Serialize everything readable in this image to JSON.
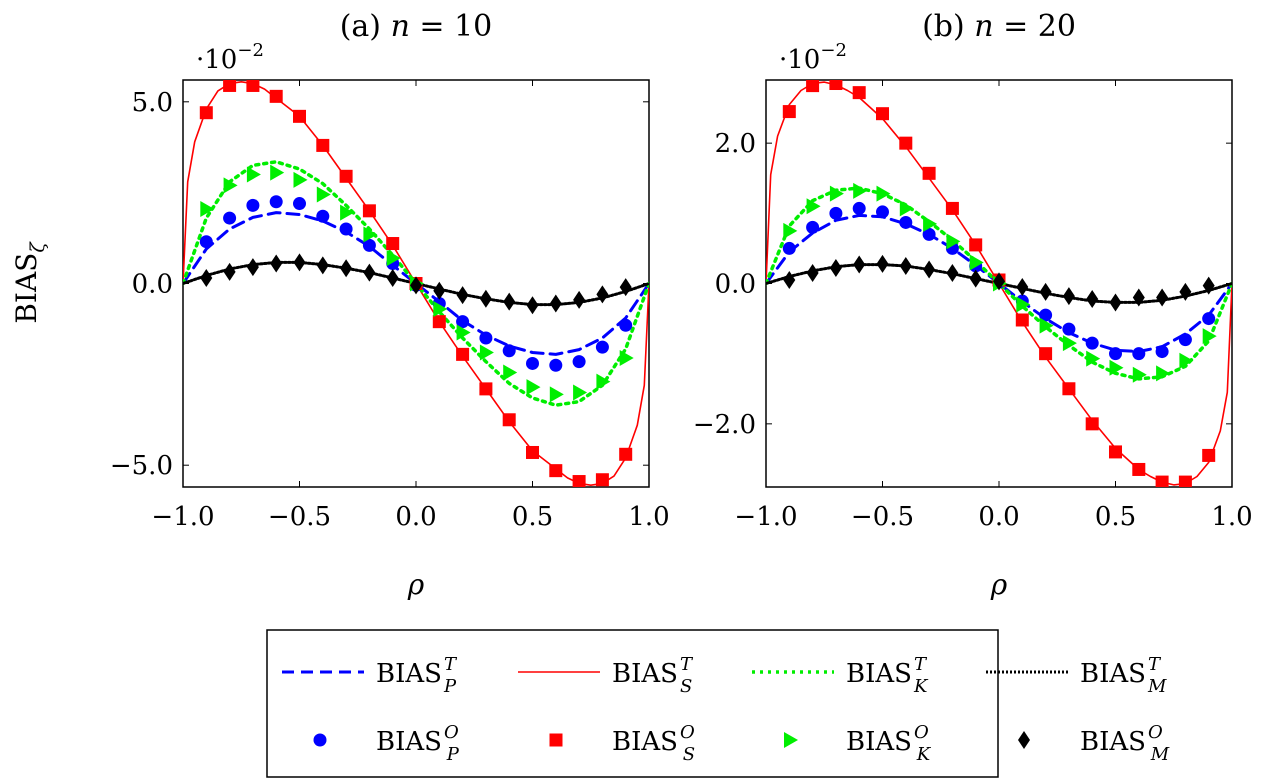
{
  "figure": {
    "ylabel": "BIAS",
    "ylabel_sub": "ζ"
  },
  "chart_data": [
    {
      "type": "line",
      "title_prefix": "(a) ",
      "title_var": "n",
      "title_rest": " = 10",
      "xlabel": "ρ",
      "ylabel": "BIASζ",
      "exponent_label": "·10",
      "exponent_power": "−2",
      "xlim": [
        -1,
        1
      ],
      "ylim": [
        -5.6,
        5.6
      ],
      "xticks": [
        -1,
        -0.5,
        0,
        0.5,
        1
      ],
      "xtick_labels": [
        "−1.0",
        "−0.5",
        "0.0",
        "0.5",
        "1.0"
      ],
      "yticks": [
        -5,
        0,
        5
      ],
      "ytick_labels": [
        "−5.0",
        "0.0",
        "5.0"
      ],
      "grid": false,
      "series": [
        {
          "name": "BIAS_P^T",
          "style": "dashed",
          "color": "#0000ff",
          "x": [
            -1,
            -0.9,
            -0.8,
            -0.7,
            -0.6,
            -0.5,
            -0.4,
            -0.3,
            -0.2,
            -0.1,
            0,
            0.1,
            0.2,
            0.3,
            0.4,
            0.5,
            0.6,
            0.7,
            0.8,
            0.9,
            1
          ],
          "y": [
            0,
            0.95,
            1.5,
            1.82,
            1.95,
            1.9,
            1.72,
            1.42,
            1.02,
            0.5,
            0,
            -0.5,
            -1.02,
            -1.42,
            -1.72,
            -1.9,
            -1.95,
            -1.82,
            -1.5,
            -0.95,
            0
          ]
        },
        {
          "name": "BIAS_S^T",
          "style": "solid",
          "color": "#ff0000",
          "x": [
            -1,
            -0.98,
            -0.95,
            -0.9,
            -0.85,
            -0.8,
            -0.75,
            -0.7,
            -0.65,
            -0.6,
            -0.5,
            -0.4,
            -0.3,
            -0.2,
            -0.1,
            0,
            0.1,
            0.2,
            0.3,
            0.4,
            0.5,
            0.6,
            0.65,
            0.7,
            0.75,
            0.8,
            0.85,
            0.9,
            0.95,
            0.98,
            1
          ],
          "y": [
            0,
            2.8,
            3.9,
            4.8,
            5.3,
            5.5,
            5.55,
            5.5,
            5.35,
            5.1,
            4.6,
            3.8,
            2.9,
            2.0,
            1.05,
            0,
            -1.05,
            -2.0,
            -2.9,
            -3.8,
            -4.6,
            -5.1,
            -5.35,
            -5.5,
            -5.55,
            -5.5,
            -5.3,
            -4.8,
            -3.9,
            -2.8,
            0
          ]
        },
        {
          "name": "BIAS_K^T",
          "style": "dotted",
          "color": "#00ee00",
          "x": [
            -1,
            -0.9,
            -0.8,
            -0.7,
            -0.6,
            -0.5,
            -0.4,
            -0.3,
            -0.2,
            -0.1,
            0,
            0.1,
            0.2,
            0.3,
            0.4,
            0.5,
            0.6,
            0.7,
            0.8,
            0.9,
            1
          ],
          "y": [
            0,
            1.8,
            2.8,
            3.25,
            3.35,
            3.15,
            2.75,
            2.15,
            1.5,
            0.78,
            0,
            -0.78,
            -1.5,
            -2.15,
            -2.75,
            -3.15,
            -3.35,
            -3.25,
            -2.8,
            -1.8,
            0
          ]
        },
        {
          "name": "BIAS_M^T",
          "style": "dotted-dense",
          "color": "#000000",
          "x": [
            -1,
            -0.9,
            -0.8,
            -0.7,
            -0.6,
            -0.5,
            -0.4,
            -0.3,
            -0.2,
            -0.1,
            0,
            0.1,
            0.2,
            0.3,
            0.4,
            0.5,
            0.6,
            0.7,
            0.8,
            0.9,
            1
          ],
          "y": [
            0,
            0.22,
            0.4,
            0.52,
            0.58,
            0.58,
            0.52,
            0.42,
            0.3,
            0.15,
            0,
            -0.15,
            -0.3,
            -0.42,
            -0.52,
            -0.58,
            -0.58,
            -0.52,
            -0.4,
            -0.22,
            0
          ]
        },
        {
          "name": "BIAS_P^O",
          "marker": "circle",
          "color": "#0000ff",
          "x": [
            -0.9,
            -0.8,
            -0.7,
            -0.6,
            -0.5,
            -0.4,
            -0.3,
            -0.2,
            -0.1,
            0,
            0.1,
            0.2,
            0.3,
            0.4,
            0.5,
            0.6,
            0.7,
            0.8,
            0.9
          ],
          "y": [
            1.15,
            1.8,
            2.15,
            2.25,
            2.2,
            1.85,
            1.5,
            1.05,
            0.55,
            -0.05,
            -0.55,
            -1.05,
            -1.5,
            -1.85,
            -2.2,
            -2.25,
            -2.15,
            -1.75,
            -1.15
          ]
        },
        {
          "name": "BIAS_S^O",
          "marker": "square",
          "color": "#ff0000",
          "x": [
            -0.9,
            -0.8,
            -0.7,
            -0.6,
            -0.5,
            -0.4,
            -0.3,
            -0.2,
            -0.1,
            0,
            0.1,
            0.2,
            0.3,
            0.4,
            0.5,
            0.6,
            0.7,
            0.8,
            0.9
          ],
          "y": [
            4.7,
            5.45,
            5.45,
            5.15,
            4.6,
            3.8,
            2.95,
            2.0,
            1.1,
            0,
            -1.05,
            -1.95,
            -2.9,
            -3.75,
            -4.65,
            -5.15,
            -5.45,
            -5.4,
            -4.7
          ]
        },
        {
          "name": "BIAS_K^O",
          "marker": "triangle-right",
          "color": "#00ee00",
          "x": [
            -0.9,
            -0.8,
            -0.7,
            -0.6,
            -0.5,
            -0.4,
            -0.3,
            -0.2,
            -0.1,
            0,
            0.1,
            0.2,
            0.3,
            0.4,
            0.5,
            0.6,
            0.7,
            0.8,
            0.9
          ],
          "y": [
            2.05,
            2.7,
            3.0,
            3.05,
            2.85,
            2.45,
            1.95,
            1.35,
            0.7,
            0,
            -0.7,
            -1.35,
            -1.9,
            -2.45,
            -2.85,
            -3.05,
            -3.0,
            -2.7,
            -2.05
          ]
        },
        {
          "name": "BIAS_M^O",
          "marker": "diamond",
          "color": "#000000",
          "x": [
            -0.9,
            -0.8,
            -0.7,
            -0.6,
            -0.5,
            -0.4,
            -0.3,
            -0.2,
            -0.1,
            0,
            0.1,
            0.2,
            0.3,
            0.4,
            0.5,
            0.6,
            0.7,
            0.8,
            0.9
          ],
          "y": [
            0.15,
            0.32,
            0.45,
            0.55,
            0.58,
            0.5,
            0.42,
            0.3,
            0.15,
            -0.05,
            -0.2,
            -0.32,
            -0.42,
            -0.5,
            -0.6,
            -0.55,
            -0.45,
            -0.3,
            -0.1
          ]
        }
      ]
    },
    {
      "type": "line",
      "title_prefix": "(b) ",
      "title_var": "n",
      "title_rest": " = 20",
      "xlabel": "ρ",
      "ylabel": "",
      "exponent_label": "·10",
      "exponent_power": "−2",
      "xlim": [
        -1,
        1
      ],
      "ylim": [
        -2.9,
        2.9
      ],
      "xticks": [
        -1,
        -0.5,
        0,
        0.5,
        1
      ],
      "xtick_labels": [
        "−1.0",
        "−0.5",
        "0.0",
        "0.5",
        "1.0"
      ],
      "yticks": [
        -2,
        0,
        2
      ],
      "ytick_labels": [
        "−2.0",
        "0.0",
        "2.0"
      ],
      "grid": false,
      "series": [
        {
          "name": "BIAS_P^T",
          "style": "dashed",
          "color": "#0000ff",
          "x": [
            -1,
            -0.9,
            -0.8,
            -0.7,
            -0.6,
            -0.5,
            -0.4,
            -0.3,
            -0.2,
            -0.1,
            0,
            0.1,
            0.2,
            0.3,
            0.4,
            0.5,
            0.6,
            0.7,
            0.8,
            0.9,
            1
          ],
          "y": [
            0,
            0.45,
            0.72,
            0.9,
            0.97,
            0.95,
            0.85,
            0.7,
            0.5,
            0.26,
            0,
            -0.26,
            -0.5,
            -0.7,
            -0.85,
            -0.95,
            -0.97,
            -0.9,
            -0.72,
            -0.45,
            0
          ]
        },
        {
          "name": "BIAS_S^T",
          "style": "solid",
          "color": "#ff0000",
          "x": [
            -1,
            -0.98,
            -0.95,
            -0.9,
            -0.85,
            -0.8,
            -0.75,
            -0.7,
            -0.65,
            -0.6,
            -0.5,
            -0.4,
            -0.3,
            -0.2,
            -0.1,
            0,
            0.1,
            0.2,
            0.3,
            0.4,
            0.5,
            0.6,
            0.65,
            0.7,
            0.75,
            0.8,
            0.85,
            0.9,
            0.95,
            0.98,
            1
          ],
          "y": [
            0,
            1.55,
            2.1,
            2.55,
            2.75,
            2.85,
            2.87,
            2.83,
            2.75,
            2.65,
            2.35,
            1.95,
            1.5,
            1.05,
            0.55,
            0,
            -0.55,
            -1.05,
            -1.5,
            -1.95,
            -2.35,
            -2.65,
            -2.75,
            -2.83,
            -2.87,
            -2.85,
            -2.75,
            -2.55,
            -2.1,
            -1.55,
            0
          ]
        },
        {
          "name": "BIAS_K^T",
          "style": "dotted",
          "color": "#00ee00",
          "x": [
            -1,
            -0.9,
            -0.8,
            -0.7,
            -0.6,
            -0.5,
            -0.4,
            -0.3,
            -0.2,
            -0.1,
            0,
            0.1,
            0.2,
            0.3,
            0.4,
            0.5,
            0.6,
            0.7,
            0.8,
            0.9,
            1
          ],
          "y": [
            0,
            0.82,
            1.18,
            1.33,
            1.36,
            1.28,
            1.12,
            0.88,
            0.62,
            0.32,
            0,
            -0.32,
            -0.62,
            -0.88,
            -1.12,
            -1.28,
            -1.36,
            -1.33,
            -1.18,
            -0.82,
            0
          ]
        },
        {
          "name": "BIAS_M^T",
          "style": "dotted-dense",
          "color": "#000000",
          "x": [
            -1,
            -0.9,
            -0.8,
            -0.7,
            -0.6,
            -0.5,
            -0.4,
            -0.3,
            -0.2,
            -0.1,
            0,
            0.1,
            0.2,
            0.3,
            0.4,
            0.5,
            0.6,
            0.7,
            0.8,
            0.9,
            1
          ],
          "y": [
            0,
            0.1,
            0.18,
            0.24,
            0.27,
            0.27,
            0.25,
            0.2,
            0.14,
            0.07,
            0,
            -0.07,
            -0.14,
            -0.2,
            -0.25,
            -0.27,
            -0.27,
            -0.24,
            -0.18,
            -0.1,
            0
          ]
        },
        {
          "name": "BIAS_P^O",
          "marker": "circle",
          "color": "#0000ff",
          "x": [
            -0.9,
            -0.8,
            -0.7,
            -0.6,
            -0.5,
            -0.4,
            -0.3,
            -0.2,
            -0.1,
            0,
            0.1,
            0.2,
            0.3,
            0.4,
            0.5,
            0.6,
            0.7,
            0.8,
            0.9
          ],
          "y": [
            0.5,
            0.8,
            1.0,
            1.07,
            1.02,
            0.87,
            0.7,
            0.5,
            0.25,
            0.02,
            -0.25,
            -0.45,
            -0.65,
            -0.85,
            -1.0,
            -1.0,
            -0.97,
            -0.8,
            -0.5
          ]
        },
        {
          "name": "BIAS_S^O",
          "marker": "square",
          "color": "#ff0000",
          "x": [
            -0.9,
            -0.8,
            -0.7,
            -0.6,
            -0.5,
            -0.4,
            -0.3,
            -0.2,
            -0.1,
            0,
            0.1,
            0.2,
            0.3,
            0.4,
            0.5,
            0.6,
            0.7,
            0.8,
            0.9
          ],
          "y": [
            2.45,
            2.82,
            2.85,
            2.72,
            2.42,
            2.0,
            1.57,
            1.07,
            0.55,
            0.05,
            -0.52,
            -1.0,
            -1.5,
            -2.0,
            -2.4,
            -2.65,
            -2.83,
            -2.83,
            -2.45
          ]
        },
        {
          "name": "BIAS_K^O",
          "marker": "triangle-right",
          "color": "#00ee00",
          "x": [
            -0.9,
            -0.8,
            -0.7,
            -0.6,
            -0.5,
            -0.4,
            -0.3,
            -0.2,
            -0.1,
            0,
            0.1,
            0.2,
            0.3,
            0.4,
            0.5,
            0.6,
            0.7,
            0.8,
            0.9
          ],
          "y": [
            0.75,
            1.1,
            1.28,
            1.32,
            1.28,
            1.07,
            0.85,
            0.6,
            0.3,
            0,
            -0.3,
            -0.6,
            -0.85,
            -1.07,
            -1.2,
            -1.3,
            -1.28,
            -1.1,
            -0.75
          ]
        },
        {
          "name": "BIAS_M^O",
          "marker": "diamond",
          "color": "#000000",
          "x": [
            -0.9,
            -0.8,
            -0.7,
            -0.6,
            -0.5,
            -0.4,
            -0.3,
            -0.2,
            -0.1,
            0,
            0.1,
            0.2,
            0.3,
            0.4,
            0.5,
            0.6,
            0.7,
            0.8,
            0.9
          ],
          "y": [
            0.05,
            0.15,
            0.22,
            0.27,
            0.28,
            0.25,
            0.2,
            0.15,
            0.07,
            0.03,
            -0.05,
            -0.12,
            -0.18,
            -0.22,
            -0.27,
            -0.2,
            -0.2,
            -0.12,
            -0.03
          ]
        }
      ]
    }
  ],
  "legend": {
    "placement": "bottom-center",
    "entries": [
      {
        "base": "BIAS",
        "sup": "T",
        "sub": "P",
        "kind": "line",
        "style": "dashed",
        "color": "#0000ff"
      },
      {
        "base": "BIAS",
        "sup": "T",
        "sub": "S",
        "kind": "line",
        "style": "solid",
        "color": "#ff0000"
      },
      {
        "base": "BIAS",
        "sup": "T",
        "sub": "K",
        "kind": "line",
        "style": "dotted",
        "color": "#00ee00"
      },
      {
        "base": "BIAS",
        "sup": "T",
        "sub": "M",
        "kind": "line",
        "style": "dotted-dense",
        "color": "#000000"
      },
      {
        "base": "BIAS",
        "sup": "O",
        "sub": "P",
        "kind": "marker",
        "marker": "circle",
        "color": "#0000ff"
      },
      {
        "base": "BIAS",
        "sup": "O",
        "sub": "S",
        "kind": "marker",
        "marker": "square",
        "color": "#ff0000"
      },
      {
        "base": "BIAS",
        "sup": "O",
        "sub": "K",
        "kind": "marker",
        "marker": "triangle-right",
        "color": "#00ee00"
      },
      {
        "base": "BIAS",
        "sup": "O",
        "sub": "M",
        "kind": "marker",
        "marker": "diamond",
        "color": "#000000"
      }
    ]
  }
}
